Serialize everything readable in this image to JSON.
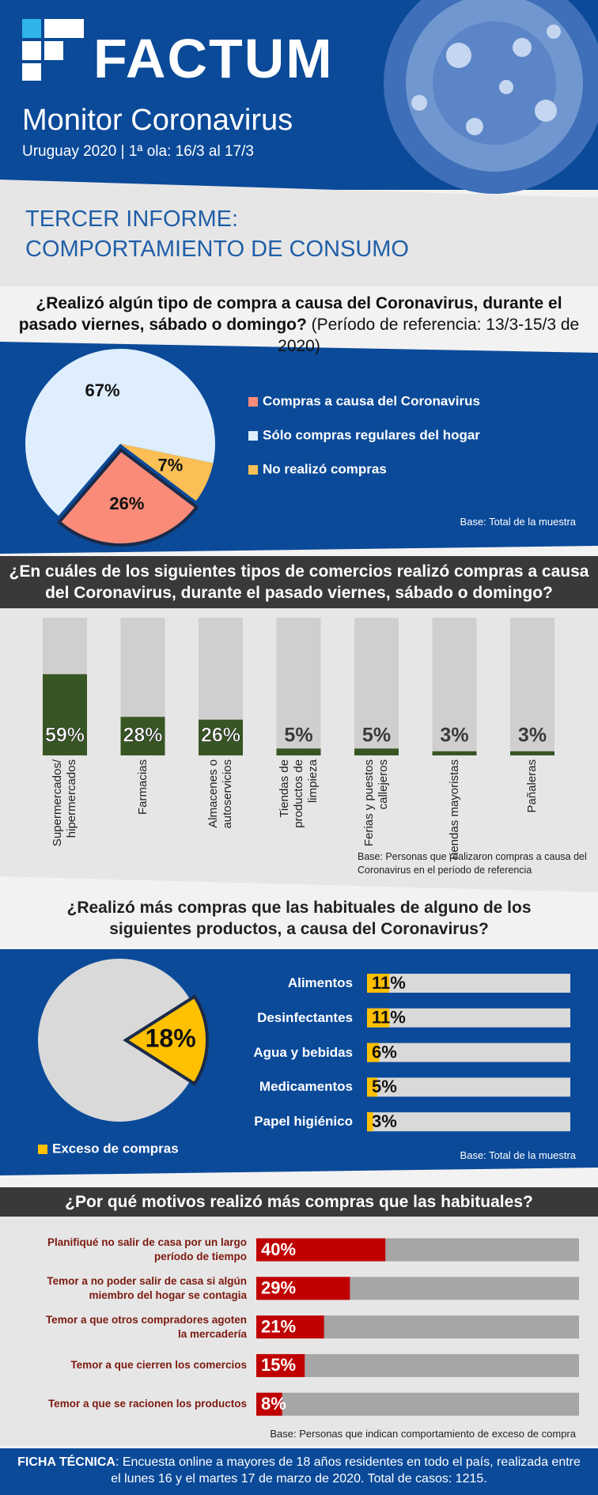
{
  "header": {
    "brand": "FACTUM",
    "title": "Monitor Coronavirus",
    "subtitle": "Uruguay 2020 | 1ª ola: 16/3 al 17/3",
    "report": [
      "TERCER INFORME:",
      "COMPORTAMIENTO DE CONSUMO"
    ]
  },
  "chart_data": [
    {
      "type": "pie",
      "title": "¿Realizó algún tipo de compra a causa del Coronavirus, durante el pasado viernes, sábado o domingo?",
      "subtitle": "(Período de referencia: 13/3-15/3 de 2020)",
      "categories": [
        "Compras a causa del Coronavirus",
        "Sólo compras regulares del hogar",
        "No realizó compras"
      ],
      "values": [
        26,
        67,
        7
      ],
      "value_labels": [
        "26%",
        "67%",
        "7%"
      ],
      "colors": [
        "#f98b78",
        "#deeefd",
        "#fbbf55"
      ],
      "note": "Base: Total de la muestra"
    },
    {
      "type": "bar",
      "title": "¿En cuáles de los siguientes tipos de comercios realizó compras a causa del Coronavirus, durante el pasado viernes, sábado o domingo?",
      "categories": [
        "Supermercados/ hipermercados",
        "Farmacias",
        "Almacenes o autoservicios",
        "Tiendas de productos de limpieza",
        "Ferias y puestos callejeros",
        "Tiendas mayoristas",
        "Pañaleras"
      ],
      "values": [
        59,
        28,
        26,
        5,
        5,
        3,
        3
      ],
      "value_labels": [
        "59%",
        "28%",
        "26%",
        "5%",
        "5%",
        "3%",
        "3%"
      ],
      "ylim": [
        0,
        100
      ],
      "color": "#375623",
      "track_color": "#d0cece",
      "note": "Base: Personas que realizaron compras a causa del Coronavirus en el período de referencia"
    },
    {
      "type": "pie",
      "title": "¿Realizó más compras que las habituales de alguno de los siguientes productos, a causa del Coronavirus?",
      "categories": [
        "Exceso de compras"
      ],
      "values": [
        18
      ],
      "value_labels": [
        "18%"
      ],
      "colors": [
        "#ffc000"
      ],
      "track_color": "#d9d9d9"
    },
    {
      "type": "hbar",
      "categories": [
        "Alimentos",
        "Desinfectantes",
        "Agua y bebidas",
        "Medicamentos",
        "Papel higiénico"
      ],
      "values": [
        11,
        11,
        6,
        5,
        3
      ],
      "value_labels": [
        "11%",
        "11%",
        "6%",
        "5%",
        "3%"
      ],
      "xlim": [
        0,
        100
      ],
      "color": "#ffc000",
      "track_color": "#d9d9d9",
      "note": "Base: Total de la muestra"
    },
    {
      "type": "hbar",
      "title": "¿Por qué motivos realizó más compras que las habituales?",
      "categories": [
        "Planifiqué no salir de casa por un largo período de tiempo",
        "Temor a no poder salir de casa si algún miembro del hogar se contagia",
        "Temor a que otros compradores agoten la mercadería",
        "Temor a que cierren los comercios",
        "Temor a que se racionen los productos"
      ],
      "values": [
        40,
        29,
        21,
        15,
        8
      ],
      "value_labels": [
        "40%",
        "29%",
        "21%",
        "15%",
        "8%"
      ],
      "xlim": [
        0,
        100
      ],
      "color": "#c00000",
      "track_color": "#a6a6a6",
      "note": "Base: Personas que indican comportamiento de exceso de compra"
    }
  ],
  "footer": {
    "label": "FICHA TÉCNICA",
    "text": ": Encuesta online a mayores de 18 años residentes en todo el país, realizada entre el lunes 16 y el martes 17 de marzo de 2020. Total de casos: 1215."
  }
}
